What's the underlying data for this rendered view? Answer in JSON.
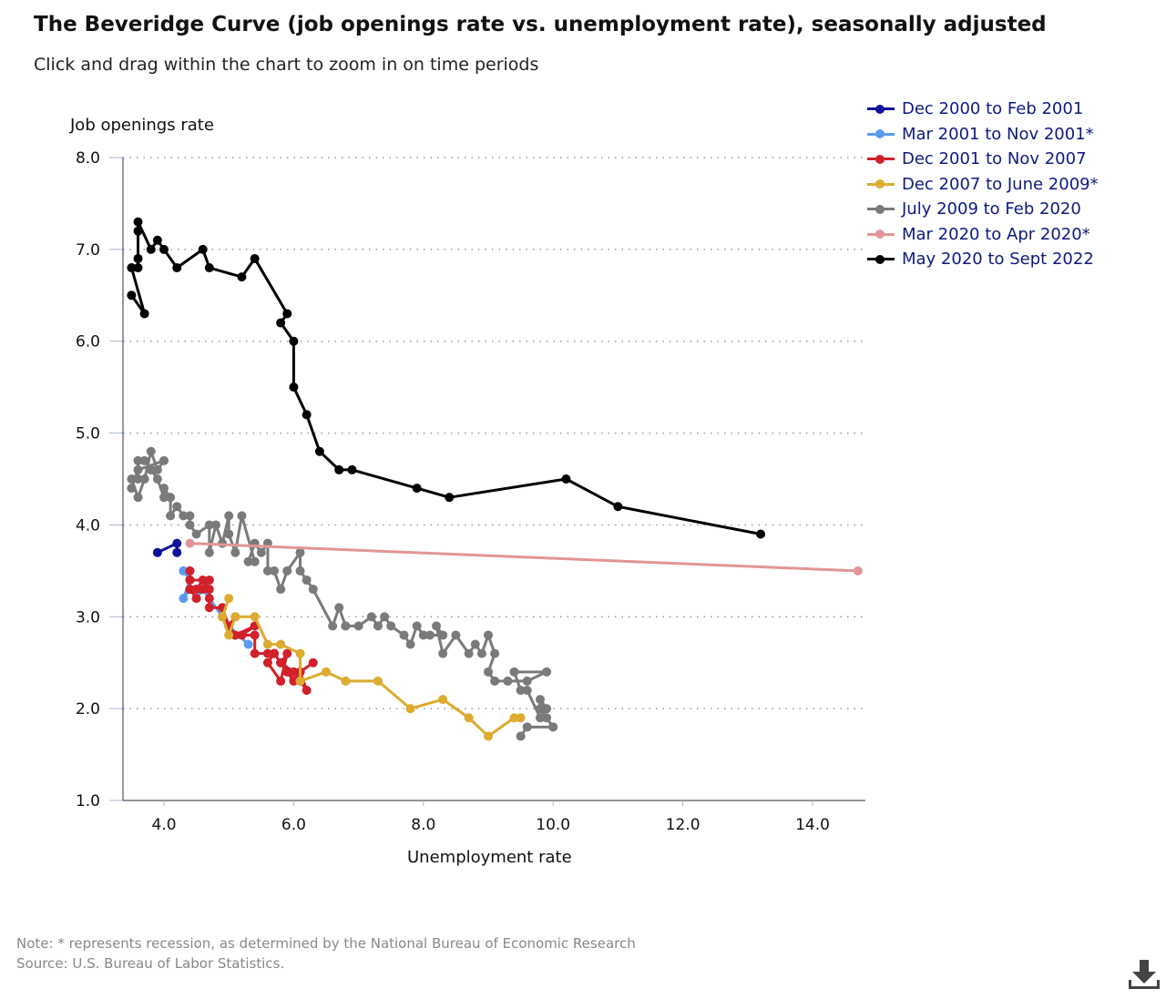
{
  "header": {
    "title": "The Beveridge Curve (job openings rate vs. unemployment rate), seasonally adjusted",
    "subtitle": "Click and drag within the chart to zoom in on time periods"
  },
  "footer": {
    "note": "Note: * represents recession, as determined by the National Bureau of Economic Research",
    "source": "Source: U.S. Bureau of Labor Statistics.",
    "download_icon": "download-icon"
  },
  "chart_data": {
    "type": "line",
    "title": "The Beveridge Curve (job openings rate vs. unemployment rate), seasonally adjusted",
    "xlabel": "Unemployment rate",
    "ylabel": "Job openings rate",
    "xlim": [
      3.35,
      14.8
    ],
    "ylim": [
      1.0,
      8.0
    ],
    "xticks": [
      "4.0",
      "6.0",
      "8.0",
      "10.0",
      "12.0",
      "14.0"
    ],
    "xtick_values": [
      4,
      6,
      8,
      10,
      12,
      14
    ],
    "yticks": [
      "1.0",
      "2.0",
      "3.0",
      "4.0",
      "5.0",
      "6.0",
      "7.0",
      "8.0"
    ],
    "ytick_values": [
      1,
      2,
      3,
      4,
      5,
      6,
      7,
      8
    ],
    "grid": "horizontal dotted",
    "legend_placement": "top-right",
    "series": [
      {
        "name": "Dec 2000 to Feb 2001",
        "color": "#10119a",
        "points": [
          [
            3.9,
            3.7
          ],
          [
            4.2,
            3.8
          ],
          [
            4.2,
            3.7
          ]
        ]
      },
      {
        "name": "Mar 2001 to Nov 2001*",
        "color": "#5b9bef",
        "points": [
          [
            4.3,
            3.5
          ],
          [
            4.4,
            3.4
          ],
          [
            4.3,
            3.2
          ],
          [
            4.4,
            3.3
          ],
          [
            4.5,
            3.2
          ],
          [
            4.6,
            3.3
          ],
          [
            4.9,
            3.0
          ],
          [
            5.0,
            2.9
          ],
          [
            5.3,
            2.7
          ]
        ]
      },
      {
        "name": "Dec 2001 to Nov 2007",
        "color": "#d0202a",
        "points": [
          [
            5.7,
            2.6
          ],
          [
            5.8,
            2.5
          ],
          [
            5.7,
            2.6
          ],
          [
            5.9,
            2.4
          ],
          [
            6.0,
            2.3
          ],
          [
            5.8,
            2.5
          ],
          [
            6.0,
            2.4
          ],
          [
            6.1,
            2.4
          ],
          [
            6.3,
            2.5
          ],
          [
            6.1,
            2.4
          ],
          [
            6.2,
            2.2
          ],
          [
            6.1,
            2.3
          ],
          [
            6.0,
            2.4
          ],
          [
            5.8,
            2.5
          ],
          [
            5.9,
            2.6
          ],
          [
            5.8,
            2.3
          ],
          [
            5.6,
            2.5
          ],
          [
            5.7,
            2.6
          ],
          [
            5.6,
            2.6
          ],
          [
            5.4,
            2.6
          ],
          [
            5.4,
            2.8
          ],
          [
            5.2,
            2.8
          ],
          [
            5.4,
            2.9
          ],
          [
            5.1,
            2.8
          ],
          [
            5.0,
            2.9
          ],
          [
            5.1,
            3.0
          ],
          [
            5.0,
            2.9
          ],
          [
            4.9,
            3.1
          ],
          [
            4.7,
            3.1
          ],
          [
            4.7,
            3.2
          ],
          [
            4.7,
            3.3
          ],
          [
            4.6,
            3.4
          ],
          [
            4.5,
            3.3
          ],
          [
            4.4,
            3.3
          ],
          [
            4.5,
            3.2
          ],
          [
            4.4,
            3.3
          ],
          [
            4.6,
            3.3
          ],
          [
            4.7,
            3.4
          ],
          [
            4.4,
            3.4
          ],
          [
            4.4,
            3.5
          ]
        ]
      },
      {
        "name": "Dec 2007 to June 2009*",
        "color": "#dcab2f",
        "points": [
          [
            5.0,
            3.2
          ],
          [
            4.9,
            3.0
          ],
          [
            5.0,
            2.8
          ],
          [
            5.1,
            3.0
          ],
          [
            5.4,
            3.0
          ],
          [
            5.6,
            2.7
          ],
          [
            5.8,
            2.7
          ],
          [
            6.1,
            2.6
          ],
          [
            6.1,
            2.3
          ],
          [
            6.5,
            2.4
          ],
          [
            6.8,
            2.3
          ],
          [
            7.3,
            2.3
          ],
          [
            7.8,
            2.0
          ],
          [
            8.3,
            2.1
          ],
          [
            8.7,
            1.9
          ],
          [
            9.0,
            1.7
          ],
          [
            9.4,
            1.9
          ],
          [
            9.5,
            1.9
          ]
        ]
      },
      {
        "name": "July 2009 to Feb 2020",
        "color": "#7a7a7a",
        "points": [
          [
            9.5,
            1.7
          ],
          [
            9.6,
            1.8
          ],
          [
            10.0,
            1.8
          ],
          [
            9.9,
            1.9
          ],
          [
            9.8,
            2.0
          ],
          [
            9.8,
            2.1
          ],
          [
            9.9,
            2.0
          ],
          [
            9.8,
            1.9
          ],
          [
            9.6,
            2.2
          ],
          [
            9.5,
            2.2
          ],
          [
            9.4,
            2.4
          ],
          [
            9.9,
            2.4
          ],
          [
            9.6,
            2.3
          ],
          [
            9.3,
            2.3
          ],
          [
            9.1,
            2.3
          ],
          [
            9.0,
            2.4
          ],
          [
            9.1,
            2.6
          ],
          [
            9.0,
            2.8
          ],
          [
            8.9,
            2.6
          ],
          [
            8.8,
            2.7
          ],
          [
            8.7,
            2.6
          ],
          [
            8.5,
            2.8
          ],
          [
            8.3,
            2.6
          ],
          [
            8.2,
            2.9
          ],
          [
            8.3,
            2.8
          ],
          [
            8.1,
            2.8
          ],
          [
            8.0,
            2.8
          ],
          [
            7.9,
            2.9
          ],
          [
            7.8,
            2.7
          ],
          [
            7.7,
            2.8
          ],
          [
            7.5,
            2.9
          ],
          [
            7.4,
            3.0
          ],
          [
            7.3,
            2.9
          ],
          [
            7.2,
            3.0
          ],
          [
            7.0,
            2.9
          ],
          [
            6.8,
            2.9
          ],
          [
            6.7,
            3.1
          ],
          [
            6.6,
            2.9
          ],
          [
            6.3,
            3.3
          ],
          [
            6.2,
            3.4
          ],
          [
            6.1,
            3.5
          ],
          [
            6.1,
            3.7
          ],
          [
            5.9,
            3.5
          ],
          [
            5.8,
            3.3
          ],
          [
            5.7,
            3.5
          ],
          [
            5.6,
            3.5
          ],
          [
            5.6,
            3.8
          ],
          [
            5.5,
            3.7
          ],
          [
            5.4,
            3.8
          ],
          [
            5.3,
            3.6
          ],
          [
            5.4,
            3.6
          ],
          [
            5.2,
            4.1
          ],
          [
            5.1,
            3.7
          ],
          [
            5.0,
            3.9
          ],
          [
            5.0,
            4.1
          ],
          [
            4.9,
            3.8
          ],
          [
            4.8,
            4.0
          ],
          [
            4.7,
            3.7
          ],
          [
            4.7,
            4.0
          ],
          [
            4.5,
            3.9
          ],
          [
            4.4,
            4.0
          ],
          [
            4.4,
            4.1
          ],
          [
            4.3,
            4.1
          ],
          [
            4.2,
            4.2
          ],
          [
            4.1,
            4.1
          ],
          [
            4.1,
            4.3
          ],
          [
            4.0,
            4.4
          ],
          [
            4.0,
            4.3
          ],
          [
            3.9,
            4.5
          ],
          [
            3.8,
            4.6
          ],
          [
            3.7,
            4.7
          ],
          [
            3.6,
            4.7
          ],
          [
            3.6,
            4.5
          ],
          [
            3.5,
            4.5
          ],
          [
            3.6,
            4.3
          ],
          [
            3.7,
            4.5
          ],
          [
            3.8,
            4.8
          ],
          [
            3.9,
            4.6
          ],
          [
            4.0,
            4.7
          ],
          [
            3.6,
            4.6
          ],
          [
            3.5,
            4.4
          ]
        ]
      },
      {
        "name": "Mar 2020 to Apr 2020*",
        "color": "#e39595",
        "points": [
          [
            4.4,
            3.8
          ],
          [
            14.7,
            3.5
          ]
        ]
      },
      {
        "name": "May 2020 to Sept 2022",
        "color": "#000000",
        "points": [
          [
            13.2,
            3.9
          ],
          [
            11.0,
            4.2
          ],
          [
            10.2,
            4.5
          ],
          [
            8.4,
            4.3
          ],
          [
            7.9,
            4.4
          ],
          [
            6.9,
            4.6
          ],
          [
            6.7,
            4.6
          ],
          [
            6.4,
            4.8
          ],
          [
            6.2,
            5.2
          ],
          [
            6.0,
            5.5
          ],
          [
            6.0,
            6.0
          ],
          [
            5.8,
            6.2
          ],
          [
            5.9,
            6.3
          ],
          [
            5.4,
            6.9
          ],
          [
            5.2,
            6.7
          ],
          [
            4.7,
            6.8
          ],
          [
            4.6,
            7.0
          ],
          [
            4.2,
            6.8
          ],
          [
            4.0,
            7.0
          ],
          [
            3.9,
            7.1
          ],
          [
            3.8,
            7.0
          ],
          [
            3.6,
            7.3
          ],
          [
            3.6,
            7.2
          ],
          [
            3.6,
            6.9
          ],
          [
            3.6,
            6.8
          ],
          [
            3.5,
            6.8
          ],
          [
            3.7,
            6.3
          ],
          [
            3.5,
            6.5
          ]
        ]
      }
    ]
  }
}
